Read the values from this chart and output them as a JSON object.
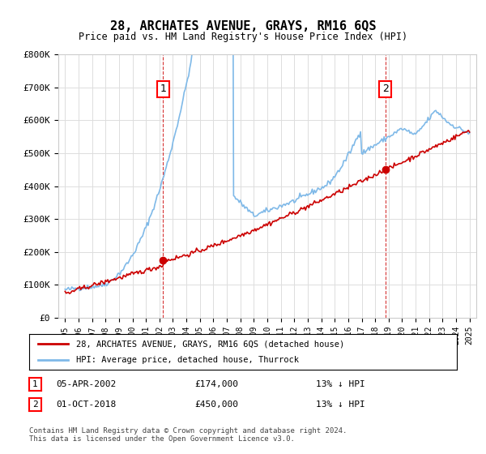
{
  "title": "28, ARCHATES AVENUE, GRAYS, RM16 6QS",
  "subtitle": "Price paid vs. HM Land Registry's House Price Index (HPI)",
  "ylabel_ticks": [
    "£0",
    "£100K",
    "£200K",
    "£300K",
    "£400K",
    "£500K",
    "£600K",
    "£700K",
    "£800K"
  ],
  "ytick_values": [
    0,
    100000,
    200000,
    300000,
    400000,
    500000,
    600000,
    700000,
    800000
  ],
  "ylim": [
    0,
    800000
  ],
  "transaction1": {
    "date_idx": 7.25,
    "price": 174000,
    "label": "1"
  },
  "transaction2": {
    "date_idx": 23.75,
    "price": 450000,
    "label": "2"
  },
  "legend_line1": "28, ARCHATES AVENUE, GRAYS, RM16 6QS (detached house)",
  "legend_line2": "HPI: Average price, detached house, Thurrock",
  "table_row1": [
    "1",
    "05-APR-2002",
    "£174,000",
    "13% ↓ HPI"
  ],
  "table_row2": [
    "2",
    "01-OCT-2018",
    "£450,000",
    "13% ↓ HPI"
  ],
  "footer": "Contains HM Land Registry data © Crown copyright and database right 2024.\nThis data is licensed under the Open Government Licence v3.0.",
  "hpi_color": "#7fb9e8",
  "price_color": "#cc0000",
  "vline_color": "#cc0000",
  "background_color": "#ffffff",
  "grid_color": "#dddddd"
}
